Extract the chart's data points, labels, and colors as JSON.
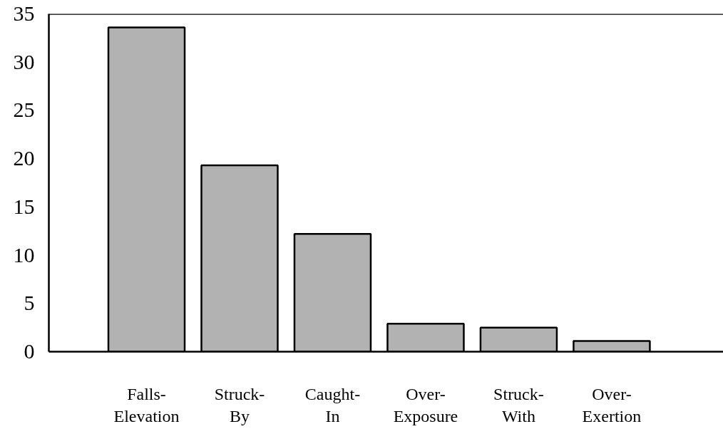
{
  "chart_data": {
    "type": "bar",
    "categories": [
      "Falls-\nElevation",
      "Struck-\nBy",
      "Caught-\nIn",
      "Over-\nExposure",
      "Struck-\nWith",
      "Over-\nExertion"
    ],
    "values": [
      33.6,
      19.3,
      12.2,
      2.9,
      2.5,
      1.1
    ],
    "color": "#b2b2b2",
    "ylim": [
      0,
      35
    ],
    "yticks": [
      0,
      5,
      10,
      15,
      20,
      25,
      30,
      35
    ],
    "grid": false
  }
}
